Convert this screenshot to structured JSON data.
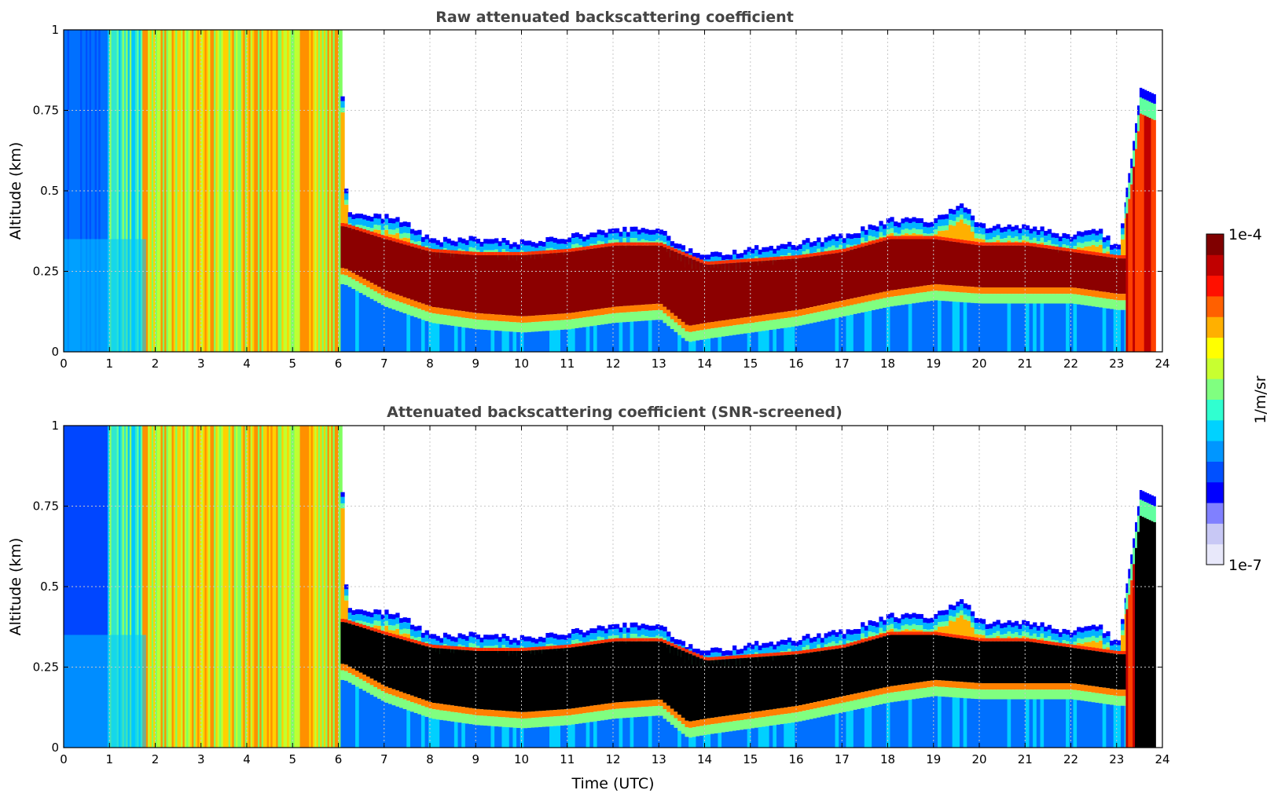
{
  "chart_data": [
    {
      "type": "heatmap",
      "title": "Raw attenuated backscattering coefficient",
      "xlabel": "",
      "ylabel": "Altitude (km)",
      "xlim": [
        0,
        24
      ],
      "ylim": [
        0,
        1
      ],
      "x_ticks": [
        "0",
        "1",
        "2",
        "3",
        "4",
        "5",
        "6",
        "7",
        "8",
        "9",
        "10",
        "11",
        "12",
        "13",
        "14",
        "15",
        "16",
        "17",
        "18",
        "19",
        "20",
        "21",
        "22",
        "23",
        "24"
      ],
      "y_ticks": [
        "0",
        "0.25",
        "0.5",
        "0.75",
        "1"
      ],
      "grid": true,
      "colorscale": "jet (log)",
      "layer_top_km": [
        [
          0,
          1.0
        ],
        [
          6.0,
          1.0
        ],
        [
          6.15,
          0.44
        ],
        [
          7,
          0.43
        ],
        [
          7.3,
          0.42
        ],
        [
          8,
          0.36
        ],
        [
          9,
          0.36
        ],
        [
          10,
          0.35
        ],
        [
          11,
          0.37
        ],
        [
          12,
          0.39
        ],
        [
          13,
          0.39
        ],
        [
          13.5,
          0.33
        ],
        [
          14,
          0.31
        ],
        [
          15,
          0.33
        ],
        [
          16,
          0.35
        ],
        [
          17,
          0.37
        ],
        [
          18,
          0.42
        ],
        [
          19,
          0.42
        ],
        [
          19.6,
          0.47
        ],
        [
          20,
          0.4
        ],
        [
          21,
          0.4
        ],
        [
          22,
          0.37
        ],
        [
          22.5,
          0.4
        ],
        [
          23,
          0.33
        ],
        [
          23.3,
          0.6
        ],
        [
          23.5,
          0.82
        ],
        [
          23.8,
          0.8
        ]
      ],
      "layer_core_top_km": [
        [
          6.1,
          0.39
        ],
        [
          7,
          0.35
        ],
        [
          8,
          0.31
        ],
        [
          9,
          0.3
        ],
        [
          10,
          0.3
        ],
        [
          11,
          0.31
        ],
        [
          12,
          0.33
        ],
        [
          13,
          0.33
        ],
        [
          14,
          0.27
        ],
        [
          15,
          0.28
        ],
        [
          16,
          0.29
        ],
        [
          17,
          0.31
        ],
        [
          18,
          0.35
        ],
        [
          19,
          0.35
        ],
        [
          20,
          0.33
        ],
        [
          21,
          0.33
        ],
        [
          22,
          0.31
        ],
        [
          23,
          0.29
        ]
      ],
      "layer_core_bottom_km": [
        [
          6.1,
          0.26
        ],
        [
          7,
          0.19
        ],
        [
          8,
          0.14
        ],
        [
          9,
          0.12
        ],
        [
          10,
          0.11
        ],
        [
          11,
          0.12
        ],
        [
          12,
          0.14
        ],
        [
          13,
          0.15
        ],
        [
          13.6,
          0.08
        ],
        [
          14,
          0.09
        ],
        [
          15,
          0.11
        ],
        [
          16,
          0.13
        ],
        [
          17,
          0.16
        ],
        [
          18,
          0.19
        ],
        [
          19,
          0.21
        ],
        [
          20,
          0.2
        ],
        [
          21,
          0.2
        ],
        [
          22,
          0.2
        ],
        [
          23,
          0.18
        ]
      ],
      "upper_cloud_23_24_km": [
        0.25,
        0.8
      ]
    },
    {
      "type": "heatmap",
      "title": "Attenuated backscattering coefficient (SNR-screened)",
      "xlabel": "Time (UTC)",
      "ylabel": "Altitude (km)",
      "xlim": [
        0,
        24
      ],
      "ylim": [
        0,
        1
      ],
      "x_ticks": [
        "0",
        "1",
        "2",
        "3",
        "4",
        "5",
        "6",
        "7",
        "8",
        "9",
        "10",
        "11",
        "12",
        "13",
        "14",
        "15",
        "16",
        "17",
        "18",
        "19",
        "20",
        "21",
        "22",
        "23",
        "24"
      ],
      "y_ticks": [
        "0",
        "0.25",
        "0.5",
        "0.75",
        "1"
      ],
      "grid": true,
      "colorscale": "jet (log)",
      "saturated_color": "#000000",
      "layer_top_km": [
        [
          0,
          1.0
        ],
        [
          6.0,
          1.0
        ],
        [
          6.15,
          0.44
        ],
        [
          7,
          0.43
        ],
        [
          7.3,
          0.42
        ],
        [
          8,
          0.36
        ],
        [
          9,
          0.36
        ],
        [
          10,
          0.35
        ],
        [
          11,
          0.37
        ],
        [
          12,
          0.39
        ],
        [
          13,
          0.39
        ],
        [
          13.5,
          0.33
        ],
        [
          14,
          0.31
        ],
        [
          15,
          0.33
        ],
        [
          16,
          0.35
        ],
        [
          17,
          0.37
        ],
        [
          18,
          0.42
        ],
        [
          19,
          0.42
        ],
        [
          19.6,
          0.47
        ],
        [
          20,
          0.4
        ],
        [
          21,
          0.4
        ],
        [
          22,
          0.37
        ],
        [
          22.5,
          0.4
        ],
        [
          23,
          0.33
        ],
        [
          23.3,
          0.6
        ],
        [
          23.5,
          0.8
        ],
        [
          23.8,
          0.78
        ]
      ]
    }
  ],
  "colorbar": {
    "label": "1/m/sr",
    "max_label": "1e-4",
    "min_label": "1e-7",
    "colors": [
      "#e8e8fa",
      "#c8c8f5",
      "#8080ff",
      "#0000ff",
      "#0050ff",
      "#0096ff",
      "#00d2ff",
      "#30ffd0",
      "#80ff80",
      "#c8ff30",
      "#ffff00",
      "#ffb000",
      "#ff6000",
      "#ff1000",
      "#c00000",
      "#800000"
    ]
  },
  "colors": {
    "saturated_black": "#000000",
    "axis": "#000000",
    "grid": "#c8c8c8",
    "title": "#444444"
  }
}
